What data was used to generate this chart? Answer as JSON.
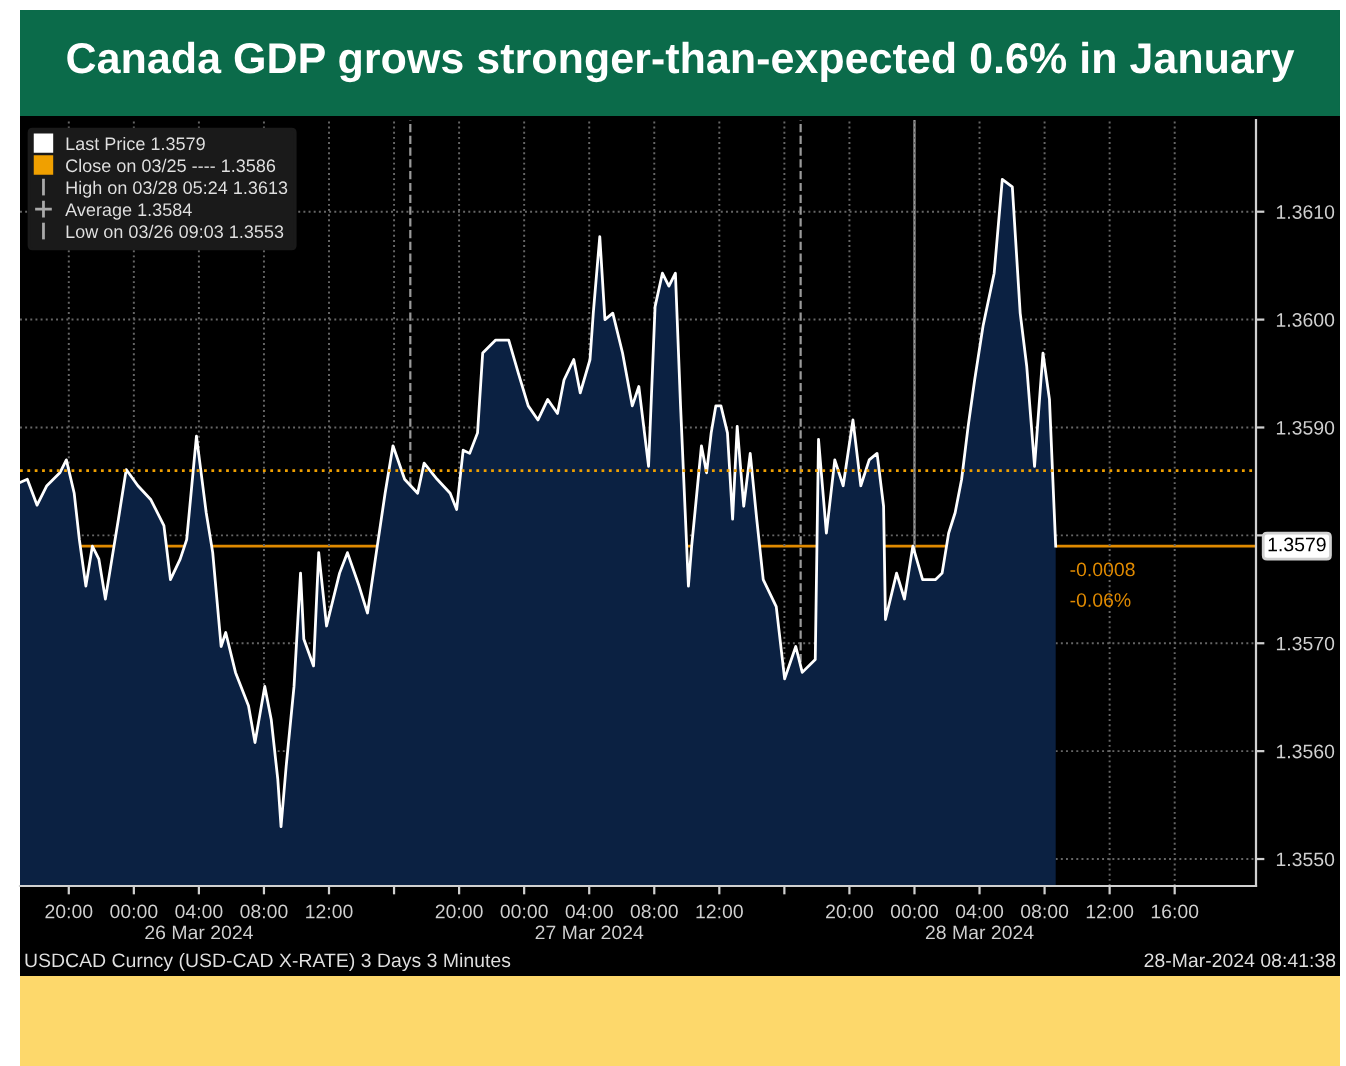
{
  "chart_data": {
    "type": "area",
    "title": "Canada GDP grows stronger-than-expected 0.6% in January",
    "x": [
      "2024-03-25T17:00",
      "2024-03-25T17:27",
      "2024-03-25T18:03",
      "2024-03-25T18:39",
      "2024-03-25T19:27",
      "2024-03-25T19:51",
      "2024-03-25T20:20",
      "2024-03-25T20:39",
      "2024-03-25T21:03",
      "2024-03-25T21:27",
      "2024-03-25T21:51",
      "2024-03-25T22:15",
      "2024-03-25T22:39",
      "2024-03-25T23:03",
      "2024-03-25T23:32",
      "2024-03-26T00:15",
      "2024-03-26T01:03",
      "2024-03-26T01:51",
      "2024-03-26T02:15",
      "2024-03-26T02:51",
      "2024-03-26T03:15",
      "2024-03-26T03:51",
      "2024-03-26T04:27",
      "2024-03-26T04:51",
      "2024-03-26T05:22",
      "2024-03-26T05:39",
      "2024-03-26T06:15",
      "2024-03-26T07:03",
      "2024-03-26T07:27",
      "2024-03-26T08:03",
      "2024-03-26T08:27",
      "2024-03-26T08:51",
      "2024-03-26T09:03",
      "2024-03-26T09:22",
      "2024-03-26T09:51",
      "2024-03-26T10:15",
      "2024-03-26T10:27",
      "2024-03-26T11:03",
      "2024-03-26T11:22",
      "2024-03-26T11:51",
      "2024-03-26T12:39",
      "2024-03-26T13:08",
      "2024-03-26T13:51",
      "2024-03-26T14:22",
      "2024-03-26T14:51",
      "2024-03-26T15:27",
      "2024-03-26T15:56",
      "2024-03-26T16:39",
      "2024-03-26T17:27",
      "2024-03-26T17:51",
      "2024-03-26T18:39",
      "2024-03-26T19:27",
      "2024-03-26T19:51",
      "2024-03-26T20:15",
      "2024-03-26T20:39",
      "2024-03-26T21:08",
      "2024-03-26T21:27",
      "2024-03-26T22:15",
      "2024-03-26T23:03",
      "2024-03-26T23:39",
      "2024-03-27T00:15",
      "2024-03-27T00:51",
      "2024-03-27T01:27",
      "2024-03-27T02:03",
      "2024-03-27T02:27",
      "2024-03-27T03:03",
      "2024-03-27T03:27",
      "2024-03-27T04:03",
      "2024-03-27T04:15",
      "2024-03-27T04:39",
      "2024-03-27T04:58",
      "2024-03-27T05:27",
      "2024-03-27T06:03",
      "2024-03-27T06:39",
      "2024-03-27T07:03",
      "2024-03-27T07:39",
      "2024-03-27T08:03",
      "2024-03-27T08:30",
      "2024-03-27T08:54",
      "2024-03-27T09:18",
      "2024-03-27T09:37",
      "2024-03-27T10:06",
      "2024-03-27T10:18",
      "2024-03-27T10:54",
      "2024-03-27T11:13",
      "2024-03-27T11:30",
      "2024-03-27T11:47",
      "2024-03-27T12:06",
      "2024-03-27T12:30",
      "2024-03-27T12:49",
      "2024-03-27T13:06",
      "2024-03-27T13:30",
      "2024-03-27T13:54",
      "2024-03-27T14:18",
      "2024-03-27T14:42",
      "2024-03-27T15:30",
      "2024-03-27T16:01",
      "2024-03-27T16:42",
      "2024-03-27T17:06",
      "2024-03-27T17:54",
      "2024-03-27T18:06",
      "2024-03-27T18:35",
      "2024-03-27T19:06",
      "2024-03-27T19:37",
      "2024-03-27T20:13",
      "2024-03-27T20:42",
      "2024-03-27T21:13",
      "2024-03-27T21:42",
      "2024-03-27T22:06",
      "2024-03-27T22:13",
      "2024-03-27T22:54",
      "2024-03-27T23:23",
      "2024-03-27T23:54",
      "2024-03-28T00:30",
      "2024-03-28T01:18",
      "2024-03-28T01:42",
      "2024-03-28T02:06",
      "2024-03-28T02:30",
      "2024-03-28T02:54",
      "2024-03-28T03:18",
      "2024-03-28T03:42",
      "2024-03-28T04:13",
      "2024-03-28T04:54",
      "2024-03-28T05:24",
      "2024-03-28T06:01",
      "2024-03-28T06:30",
      "2024-03-28T06:54",
      "2024-03-28T07:23",
      "2024-03-28T07:54",
      "2024-03-28T08:18",
      "2024-03-28T08:41"
    ],
    "series": [
      {
        "name": "Last Price 1.3579",
        "color": "#ffffff",
        "values": [
          1.35849,
          1.35852,
          1.35828,
          1.35846,
          1.35858,
          1.3587,
          1.35839,
          1.35796,
          1.35753,
          1.3579,
          1.35778,
          1.35741,
          1.35778,
          1.35815,
          1.35861,
          1.35846,
          1.35833,
          1.35809,
          1.35759,
          1.35778,
          1.35796,
          1.35892,
          1.35821,
          1.35784,
          1.35697,
          1.3571,
          1.35673,
          1.35642,
          1.35608,
          1.3566,
          1.35629,
          1.35574,
          1.3553,
          1.35586,
          1.3566,
          1.35765,
          1.35704,
          1.35679,
          1.35784,
          1.35716,
          1.35765,
          1.35784,
          1.35753,
          1.35728,
          1.35778,
          1.35839,
          1.35883,
          1.35852,
          1.35839,
          1.35867,
          1.35852,
          1.35839,
          1.35824,
          1.35879,
          1.35876,
          1.35895,
          1.35969,
          1.35981,
          1.35981,
          1.3595,
          1.3592,
          1.35907,
          1.35926,
          1.35913,
          1.35944,
          1.35963,
          1.35932,
          1.35963,
          1.36006,
          1.36077,
          1.36,
          1.36006,
          1.35969,
          1.3592,
          1.35938,
          1.35864,
          1.36012,
          1.36043,
          1.36031,
          1.36043,
          1.3592,
          1.35753,
          1.3579,
          1.35883,
          1.35858,
          1.35895,
          1.3592,
          1.3592,
          1.35895,
          1.35815,
          1.35901,
          1.35827,
          1.35876,
          1.35815,
          1.35759,
          1.35734,
          1.35667,
          1.35697,
          1.35673,
          1.35685,
          1.35889,
          1.35802,
          1.3587,
          1.35846,
          1.35907,
          1.35846,
          1.3587,
          1.35876,
          1.35827,
          1.35722,
          1.35765,
          1.35741,
          1.3579,
          1.35759,
          1.35759,
          1.35765,
          1.35802,
          1.35821,
          1.35852,
          1.35901,
          1.35944,
          1.35994,
          1.36043,
          1.3613,
          1.36123,
          1.36006,
          1.35957,
          1.35864,
          1.35969,
          1.35926,
          1.3579
        ]
      }
    ],
    "xlim": [
      "2024-03-25T17:00",
      "2024-03-28T21:00"
    ],
    "xticks": [
      {
        "value": "2024-03-25T20:00",
        "label": "20:00"
      },
      {
        "value": "2024-03-26T00:00",
        "label": "00:00"
      },
      {
        "value": "2024-03-26T04:00",
        "label": "04:00\n26 Mar 2024"
      },
      {
        "value": "2024-03-26T08:00",
        "label": "08:00"
      },
      {
        "value": "2024-03-26T12:00",
        "label": "12:00"
      },
      {
        "value": "2024-03-26T16:00",
        "label": null
      },
      {
        "value": "2024-03-26T20:00",
        "label": "20:00"
      },
      {
        "value": "2024-03-27T00:00",
        "label": "00:00"
      },
      {
        "value": "2024-03-27T04:00",
        "label": "04:00\n27 Mar 2024"
      },
      {
        "value": "2024-03-27T08:00",
        "label": "08:00"
      },
      {
        "value": "2024-03-27T12:00",
        "label": "12:00"
      },
      {
        "value": "2024-03-27T16:00",
        "label": null
      },
      {
        "value": "2024-03-27T20:00",
        "label": "20:00"
      },
      {
        "value": "2024-03-28T00:00",
        "label": "00:00"
      },
      {
        "value": "2024-03-28T04:00",
        "label": "04:00\n28 Mar 2024"
      },
      {
        "value": "2024-03-28T08:00",
        "label": "08:00"
      },
      {
        "value": "2024-03-28T12:00",
        "label": "12:00"
      },
      {
        "value": "2024-03-28T16:00",
        "label": "16:00"
      }
    ],
    "ylim": [
      1.35475,
      1.36185
    ],
    "yticks": [
      {
        "value": 1.355,
        "label": "1.3550"
      },
      {
        "value": 1.356,
        "label": "1.3560"
      },
      {
        "value": 1.357,
        "label": "1.3570"
      },
      {
        "value": 1.358,
        "label": null
      },
      {
        "value": 1.359,
        "label": "1.3590"
      },
      {
        "value": 1.36,
        "label": "1.3600"
      },
      {
        "value": 1.361,
        "label": "1.3610"
      }
    ],
    "ref_lines": [
      {
        "axis": "y",
        "value": 1.3586,
        "label": "Close on 03/25 ---- 1.3586",
        "color": "#f0a000",
        "line_style": "dotted"
      },
      {
        "axis": "y",
        "value": 1.3579,
        "label": "1.3579",
        "color": "#e08a00",
        "line_style": "solid"
      },
      {
        "axis": "x",
        "value": "2024-03-26T17:00",
        "color": "#9a9a9a",
        "line_style": "dashed"
      },
      {
        "axis": "x",
        "value": "2024-03-27T17:00",
        "color": "#9a9a9a",
        "line_style": "dashed"
      },
      {
        "axis": "x",
        "value": "2024-03-28T00:00",
        "color": "#9a9a9a",
        "line_style": "solid"
      }
    ],
    "annotations": [
      "High on 03/28 05:24 1.3613",
      "Average 1.3584",
      "Low on 03/26 09:03 1.3553",
      "USDCAD Curncy (USD-CAD X-RATE) 3 Days 3 Minutes",
      "28-Mar-2024 08:41:38",
      {
        "text": "-0.0008",
        "x": "2024-03-28T08:41",
        "y": 1.3579
      },
      {
        "text": "-0.06%",
        "x": "2024-03-28T08:41",
        "y": 1.3579
      }
    ],
    "grid": true,
    "legend": "top left"
  }
}
